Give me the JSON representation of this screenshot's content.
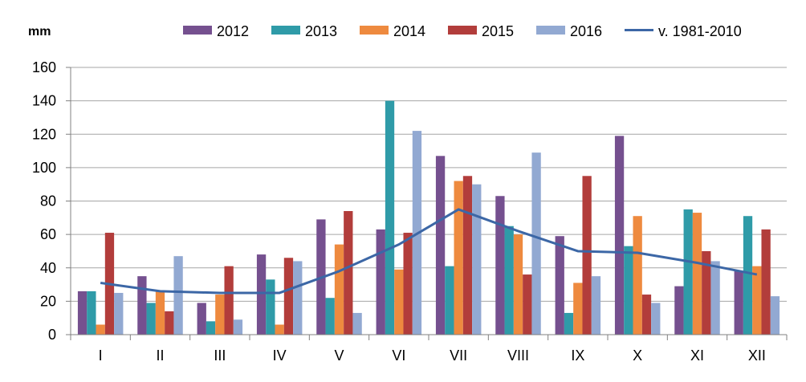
{
  "chart_data": {
    "type": "bar",
    "ylabel": "mm",
    "ylim": [
      0,
      160
    ],
    "yticks": [
      0,
      20,
      40,
      60,
      80,
      100,
      120,
      140,
      160
    ],
    "grid": true,
    "legend_position": "top",
    "categories": [
      "I",
      "II",
      "III",
      "IV",
      "V",
      "VI",
      "VII",
      "VIII",
      "IX",
      "X",
      "XI",
      "XII"
    ],
    "series": [
      {
        "name": "2012",
        "color": "#75508f",
        "values": [
          26,
          35,
          19,
          48,
          69,
          63,
          107,
          83,
          59,
          119,
          29,
          38
        ]
      },
      {
        "name": "2013",
        "color": "#2f9ba8",
        "values": [
          26,
          19,
          8,
          33,
          22,
          140,
          41,
          65,
          13,
          53,
          75,
          71
        ]
      },
      {
        "name": "2014",
        "color": "#ee8a3f",
        "values": [
          6,
          26,
          24,
          6,
          54,
          39,
          92,
          60,
          31,
          71,
          73,
          41
        ]
      },
      {
        "name": "2015",
        "color": "#b23d3b",
        "values": [
          61,
          14,
          41,
          46,
          74,
          61,
          95,
          36,
          95,
          24,
          50,
          63
        ]
      },
      {
        "name": "2016",
        "color": "#92a9d2",
        "values": [
          25,
          47,
          9,
          44,
          13,
          122,
          90,
          109,
          35,
          19,
          44,
          23
        ]
      }
    ],
    "line_series": {
      "name": "v. 1981-2010",
      "color": "#3c67a6",
      "values": [
        31,
        26,
        25,
        25,
        38,
        54,
        75,
        62,
        50,
        49,
        43,
        36
      ]
    }
  }
}
